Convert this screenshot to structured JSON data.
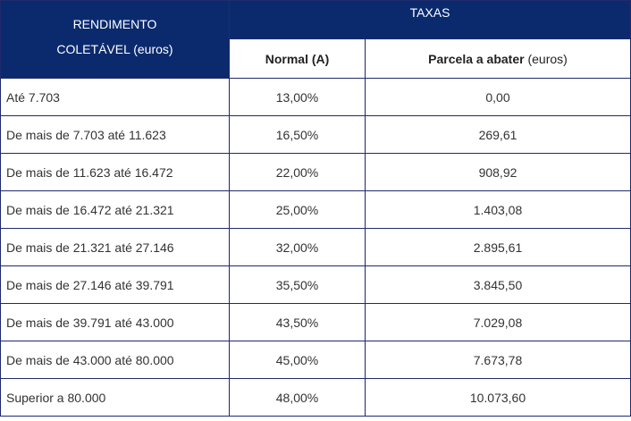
{
  "header": {
    "income_label_line1": "RENDIMENTO",
    "income_label_line2": "COLETÁVEL (euros)",
    "rates_label": "TAXAS",
    "normal_label": "Normal (A)",
    "deduction_label_bold": "Parcela a abater",
    "deduction_label_unit": " (euros)"
  },
  "rows": [
    {
      "range": "Até 7.703",
      "rate": "13,00%",
      "deduction": "0,00"
    },
    {
      "range": "De mais de 7.703 até 11.623",
      "rate": "16,50%",
      "deduction": "269,61"
    },
    {
      "range": "De mais de 11.623 até 16.472",
      "rate": "22,00%",
      "deduction": "908,92"
    },
    {
      "range": "De mais de 16.472 até 21.321",
      "rate": "25,00%",
      "deduction": "1.403,08"
    },
    {
      "range": "De mais de 21.321 até 27.146",
      "rate": "32,00%",
      "deduction": "2.895,61"
    },
    {
      "range": "De mais de 27.146 até 39.791",
      "rate": "35,50%",
      "deduction": "3.845,50"
    },
    {
      "range": "De mais de 39.791 até 43.000",
      "rate": "43,50%",
      "deduction": "7.029,08"
    },
    {
      "range": "De mais de 43.000 até 80.000",
      "rate": "45,00%",
      "deduction": "7.673,78"
    },
    {
      "range": "Superior a 80.000",
      "rate": "48,00%",
      "deduction": "10.073,60"
    }
  ],
  "colors": {
    "header_bg": "#0b2a6e",
    "border": "#1f2a6b"
  }
}
